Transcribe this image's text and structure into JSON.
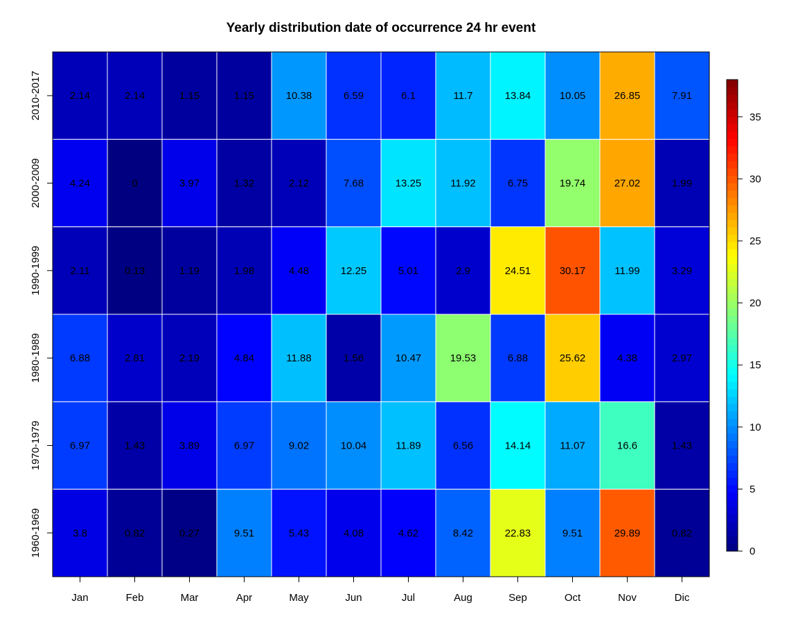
{
  "chart_data": {
    "type": "heatmap",
    "title": "Yearly distribution date of occurrence 24 hr event",
    "xlabel": "",
    "ylabel": "",
    "x_categories": [
      "Jan",
      "Feb",
      "Mar",
      "Apr",
      "May",
      "Jun",
      "Jul",
      "Aug",
      "Sep",
      "Oct",
      "Nov",
      "Dic"
    ],
    "y_categories": [
      "2010-2017",
      "2000-2009",
      "1990-1999",
      "1980-1989",
      "1970-1979",
      "1960-1969"
    ],
    "values": [
      [
        2.14,
        2.14,
        1.15,
        1.15,
        10.38,
        6.59,
        6.1,
        11.7,
        13.84,
        10.05,
        26.85,
        7.91
      ],
      [
        4.24,
        0,
        3.97,
        1.32,
        2.12,
        7.68,
        13.25,
        11.92,
        6.75,
        19.74,
        27.02,
        1.99
      ],
      [
        2.11,
        0.13,
        1.19,
        1.98,
        4.48,
        12.25,
        5.01,
        2.9,
        24.51,
        30.17,
        11.99,
        3.29
      ],
      [
        6.88,
        2.81,
        2.19,
        4.84,
        11.88,
        1.56,
        10.47,
        19.53,
        6.88,
        25.62,
        4.38,
        2.97
      ],
      [
        6.97,
        1.43,
        3.89,
        6.97,
        9.02,
        10.04,
        11.89,
        6.56,
        14.14,
        11.07,
        16.6,
        1.43
      ],
      [
        3.8,
        0.82,
        0.27,
        9.51,
        5.43,
        4.08,
        4.62,
        8.42,
        22.83,
        9.51,
        29.89,
        0.82
      ]
    ],
    "colorbar": {
      "range": [
        0,
        38
      ],
      "ticks": [
        0,
        5,
        10,
        15,
        20,
        25,
        30,
        35
      ],
      "colormap": "jet"
    },
    "grid": false
  }
}
